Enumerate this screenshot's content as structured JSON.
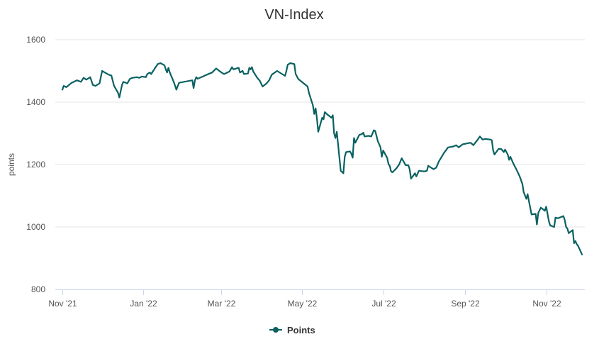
{
  "chart_data": {
    "type": "line",
    "title": "VN-Index",
    "ylabel": "points",
    "xlabel": "",
    "ylim": [
      800,
      1600
    ],
    "yticks": [
      "800",
      "1000",
      "1200",
      "1400",
      "1600"
    ],
    "xticks": [
      "Nov '21",
      "Jan '22",
      "Mar '22",
      "May '22",
      "Jul '22",
      "Sep '22",
      "Nov '22"
    ],
    "grid": "horizontal",
    "legend": "bottom-center",
    "colors": {
      "series": "#0a6161",
      "grid": "#e6e6e6",
      "axis": "#ccd6eb"
    },
    "series": [
      {
        "name": "Points",
        "points": [
          [
            "2021-11-01",
            1440
          ],
          [
            "2021-11-02",
            1452
          ],
          [
            "2021-11-04",
            1448
          ],
          [
            "2021-11-08",
            1462
          ],
          [
            "2021-11-12",
            1470
          ],
          [
            "2021-11-15",
            1465
          ],
          [
            "2021-11-17",
            1478
          ],
          [
            "2021-11-19",
            1472
          ],
          [
            "2021-11-22",
            1480
          ],
          [
            "2021-11-24",
            1455
          ],
          [
            "2021-11-26",
            1452
          ],
          [
            "2021-11-29",
            1460
          ],
          [
            "2021-12-01",
            1500
          ],
          [
            "2021-12-03",
            1495
          ],
          [
            "2021-12-06",
            1488
          ],
          [
            "2021-12-08",
            1485
          ],
          [
            "2021-12-10",
            1452
          ],
          [
            "2021-12-13",
            1430
          ],
          [
            "2021-12-14",
            1415
          ],
          [
            "2021-12-16",
            1455
          ],
          [
            "2021-12-17",
            1465
          ],
          [
            "2021-12-20",
            1460
          ],
          [
            "2021-12-22",
            1475
          ],
          [
            "2021-12-24",
            1478
          ],
          [
            "2021-12-27",
            1480
          ],
          [
            "2021-12-29",
            1478
          ],
          [
            "2021-12-31",
            1482
          ],
          [
            "2022-01-03",
            1480
          ],
          [
            "2022-01-04",
            1490
          ],
          [
            "2022-01-06",
            1495
          ],
          [
            "2022-01-07",
            1490
          ],
          [
            "2022-01-10",
            1510
          ],
          [
            "2022-01-12",
            1522
          ],
          [
            "2022-01-14",
            1525
          ],
          [
            "2022-01-17",
            1518
          ],
          [
            "2022-01-18",
            1505
          ],
          [
            "2022-01-19",
            1495
          ],
          [
            "2022-01-20",
            1510
          ],
          [
            "2022-01-21",
            1495
          ],
          [
            "2022-01-24",
            1465
          ],
          [
            "2022-01-26",
            1440
          ],
          [
            "2022-01-28",
            1462
          ],
          [
            "2022-02-07",
            1470
          ],
          [
            "2022-02-08",
            1445
          ],
          [
            "2022-02-09",
            1470
          ],
          [
            "2022-02-10",
            1480
          ],
          [
            "2022-02-11",
            1475
          ],
          [
            "2022-02-15",
            1482
          ],
          [
            "2022-02-18",
            1488
          ],
          [
            "2022-02-22",
            1495
          ],
          [
            "2022-02-25",
            1508
          ],
          [
            "2022-03-01",
            1495
          ],
          [
            "2022-03-03",
            1490
          ],
          [
            "2022-03-07",
            1498
          ],
          [
            "2022-03-09",
            1512
          ],
          [
            "2022-03-10",
            1505
          ],
          [
            "2022-03-14",
            1510
          ],
          [
            "2022-03-15",
            1495
          ],
          [
            "2022-03-17",
            1500
          ],
          [
            "2022-03-18",
            1490
          ],
          [
            "2022-03-21",
            1492
          ],
          [
            "2022-03-22",
            1510
          ],
          [
            "2022-03-23",
            1505
          ],
          [
            "2022-03-24",
            1512
          ],
          [
            "2022-03-25",
            1498
          ],
          [
            "2022-03-28",
            1478
          ],
          [
            "2022-03-30",
            1468
          ],
          [
            "2022-04-01",
            1450
          ],
          [
            "2022-04-04",
            1460
          ],
          [
            "2022-04-06",
            1470
          ],
          [
            "2022-04-08",
            1488
          ],
          [
            "2022-04-12",
            1500
          ],
          [
            "2022-04-15",
            1492
          ],
          [
            "2022-04-18",
            1484
          ],
          [
            "2022-04-19",
            1500
          ],
          [
            "2022-04-20",
            1520
          ],
          [
            "2022-04-22",
            1525
          ],
          [
            "2022-04-25",
            1522
          ],
          [
            "2022-04-26",
            1490
          ],
          [
            "2022-04-28",
            1474
          ],
          [
            "2022-05-05",
            1450
          ],
          [
            "2022-05-06",
            1430
          ],
          [
            "2022-05-09",
            1390
          ],
          [
            "2022-05-10",
            1362
          ],
          [
            "2022-05-11",
            1380
          ],
          [
            "2022-05-12",
            1350
          ],
          [
            "2022-05-13",
            1305
          ],
          [
            "2022-05-16",
            1350
          ],
          [
            "2022-05-17",
            1345
          ],
          [
            "2022-05-18",
            1368
          ],
          [
            "2022-05-20",
            1360
          ],
          [
            "2022-05-23",
            1350
          ],
          [
            "2022-05-24",
            1358
          ],
          [
            "2022-05-25",
            1300
          ],
          [
            "2022-05-26",
            1285
          ],
          [
            "2022-05-27",
            1305
          ],
          [
            "2022-05-30",
            1180
          ],
          [
            "2022-06-01",
            1172
          ],
          [
            "2022-06-02",
            1225
          ],
          [
            "2022-06-03",
            1240
          ],
          [
            "2022-06-06",
            1242
          ],
          [
            "2022-06-07",
            1235
          ],
          [
            "2022-06-08",
            1222
          ],
          [
            "2022-06-09",
            1285
          ],
          [
            "2022-06-10",
            1270
          ],
          [
            "2022-06-13",
            1295
          ],
          [
            "2022-06-15",
            1298
          ],
          [
            "2022-06-16",
            1302
          ],
          [
            "2022-06-17",
            1290
          ],
          [
            "2022-06-20",
            1292
          ],
          [
            "2022-06-22",
            1290
          ],
          [
            "2022-06-24",
            1310
          ],
          [
            "2022-06-25",
            1308
          ],
          [
            "2022-06-27",
            1275
          ],
          [
            "2022-06-29",
            1255
          ],
          [
            "2022-06-30",
            1225
          ],
          [
            "2022-07-01",
            1245
          ],
          [
            "2022-07-04",
            1222
          ],
          [
            "2022-07-05",
            1202
          ],
          [
            "2022-07-06",
            1195
          ],
          [
            "2022-07-07",
            1178
          ],
          [
            "2022-07-08",
            1175
          ],
          [
            "2022-07-11",
            1188
          ],
          [
            "2022-07-13",
            1200
          ],
          [
            "2022-07-15",
            1220
          ],
          [
            "2022-07-18",
            1198
          ],
          [
            "2022-07-20",
            1198
          ],
          [
            "2022-07-21",
            1185
          ],
          [
            "2022-07-22",
            1155
          ],
          [
            "2022-07-25",
            1172
          ],
          [
            "2022-07-26",
            1162
          ],
          [
            "2022-07-28",
            1180
          ],
          [
            "2022-08-01",
            1178
          ],
          [
            "2022-08-03",
            1180
          ],
          [
            "2022-08-04",
            1196
          ],
          [
            "2022-08-08",
            1185
          ],
          [
            "2022-08-10",
            1190
          ],
          [
            "2022-08-12",
            1210
          ],
          [
            "2022-08-16",
            1238
          ],
          [
            "2022-08-19",
            1255
          ],
          [
            "2022-08-23",
            1258
          ],
          [
            "2022-08-25",
            1262
          ],
          [
            "2022-08-27",
            1255
          ],
          [
            "2022-08-30",
            1265
          ],
          [
            "2022-09-05",
            1270
          ],
          [
            "2022-09-07",
            1262
          ],
          [
            "2022-09-10",
            1278
          ],
          [
            "2022-09-12",
            1290
          ],
          [
            "2022-09-14",
            1280
          ],
          [
            "2022-09-16",
            1282
          ],
          [
            "2022-09-20",
            1280
          ],
          [
            "2022-09-21",
            1278
          ],
          [
            "2022-09-22",
            1245
          ],
          [
            "2022-09-23",
            1232
          ],
          [
            "2022-09-26",
            1250
          ],
          [
            "2022-09-28",
            1250
          ],
          [
            "2022-09-30",
            1240
          ],
          [
            "2022-10-01",
            1248
          ],
          [
            "2022-10-03",
            1232
          ],
          [
            "2022-10-04",
            1215
          ],
          [
            "2022-10-05",
            1225
          ],
          [
            "2022-10-07",
            1205
          ],
          [
            "2022-10-10",
            1180
          ],
          [
            "2022-10-12",
            1162
          ],
          [
            "2022-10-14",
            1138
          ],
          [
            "2022-10-15",
            1112
          ],
          [
            "2022-10-17",
            1090
          ],
          [
            "2022-10-18",
            1105
          ],
          [
            "2022-10-20",
            1060
          ],
          [
            "2022-10-21",
            1040
          ],
          [
            "2022-10-24",
            1042
          ],
          [
            "2022-10-25",
            1008
          ],
          [
            "2022-10-26",
            1045
          ],
          [
            "2022-10-28",
            1062
          ],
          [
            "2022-10-31",
            1052
          ],
          [
            "2022-11-01",
            1065
          ],
          [
            "2022-11-02",
            1042
          ],
          [
            "2022-11-03",
            1018
          ],
          [
            "2022-11-04",
            1005
          ],
          [
            "2022-11-07",
            1000
          ],
          [
            "2022-11-08",
            1030
          ],
          [
            "2022-11-10",
            1028
          ],
          [
            "2022-11-14",
            1035
          ],
          [
            "2022-11-15",
            1022
          ],
          [
            "2022-11-16",
            1000
          ],
          [
            "2022-11-17",
            995
          ],
          [
            "2022-11-18",
            980
          ],
          [
            "2022-11-21",
            990
          ],
          [
            "2022-11-22",
            948
          ],
          [
            "2022-11-23",
            955
          ],
          [
            "2022-11-24",
            945
          ],
          [
            "2022-11-25",
            940
          ],
          [
            "2022-11-28",
            912
          ]
        ]
      }
    ]
  }
}
